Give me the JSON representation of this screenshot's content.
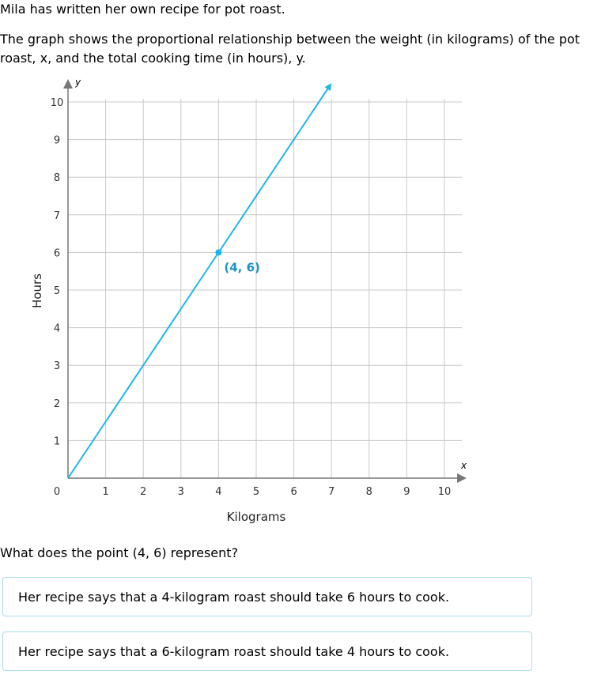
{
  "intro": "Mila has written her own recipe for pot roast.",
  "description_line1": "The graph shows the proportional relationship between the weight (in kilograms) of the pot",
  "description_line2": "roast, x, and the total cooking time (in hours), y.",
  "question": "What does the point (4, 6) represent?",
  "choices": [
    "Her recipe says that a 4-kilogram roast should take 6 hours to cook.",
    "Her recipe says that a 6-kilogram roast should take 4 hours to cook."
  ],
  "colors": {
    "line": "#1bb8e6",
    "point_label": "#1a93c4",
    "grid": "#c8c8c8",
    "axis": "#777777",
    "choice_border": "#a9dcee"
  },
  "chart_data": {
    "type": "line",
    "xlabel": "Kilograms",
    "ylabel": "Hours",
    "x_var": "x",
    "y_var": "y",
    "xlim": [
      0,
      10
    ],
    "ylim": [
      0,
      10
    ],
    "x_ticks": [
      "0",
      "1",
      "2",
      "3",
      "4",
      "5",
      "6",
      "7",
      "8",
      "9",
      "10"
    ],
    "y_ticks": [
      "1",
      "2",
      "3",
      "4",
      "5",
      "6",
      "7",
      "8",
      "9",
      "10"
    ],
    "grid": true,
    "series": [
      {
        "x": [
          0,
          7
        ],
        "y": [
          0,
          10.5
        ]
      }
    ],
    "highlight_point": {
      "x": 4,
      "y": 6,
      "label": "(4, 6)"
    }
  }
}
